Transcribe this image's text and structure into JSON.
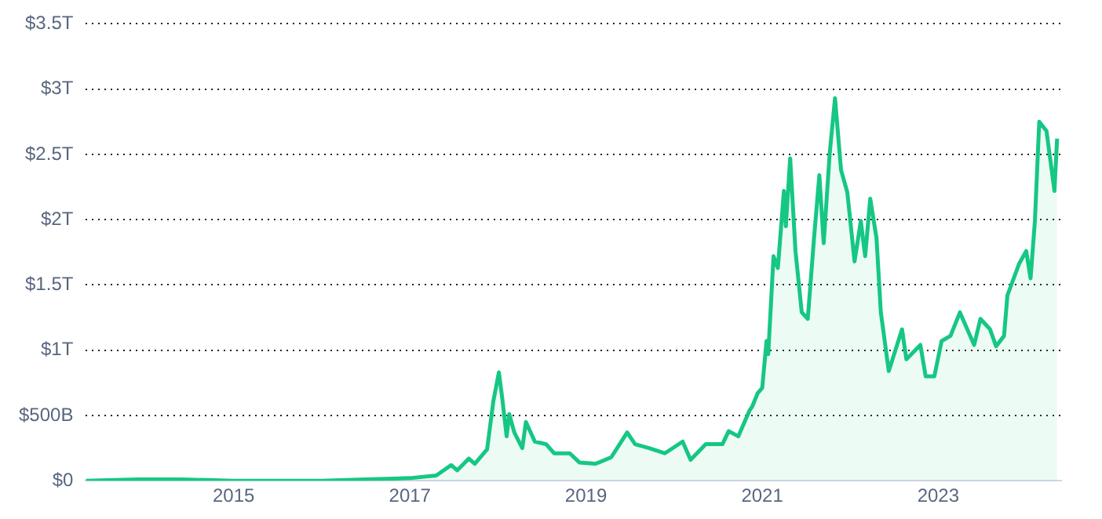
{
  "chart_data": {
    "type": "area",
    "x": [
      "2013-04-28",
      "2013-11-30",
      "2014-06-01",
      "2015-01-01",
      "2016-01-01",
      "2016-07-01",
      "2017-01-01",
      "2017-04-20",
      "2017-06-21",
      "2017-07-16",
      "2017-09-02",
      "2017-09-27",
      "2017-11-17",
      "2017-12-13",
      "2018-01-05",
      "2018-01-19",
      "2018-02-06",
      "2018-02-17",
      "2018-03-10",
      "2018-04-12",
      "2018-04-27",
      "2018-06-03",
      "2018-07-20",
      "2018-08-22",
      "2018-10-26",
      "2018-12-05",
      "2019-02-10",
      "2019-04-16",
      "2019-06-21",
      "2019-07-24",
      "2019-09-20",
      "2019-11-24",
      "2020-02-06",
      "2020-03-10",
      "2020-05-12",
      "2020-07-20",
      "2020-08-15",
      "2020-09-24",
      "2020-11-10",
      "2020-11-21",
      "2020-12-13",
      "2021-01-01",
      "2021-01-19",
      "2021-01-26",
      "2021-02-17",
      "2021-03-07",
      "2021-04-01",
      "2021-04-09",
      "2021-04-27",
      "2021-05-19",
      "2021-06-14",
      "2021-07-09",
      "2021-08-04",
      "2021-08-26",
      "2021-09-13",
      "2021-10-08",
      "2021-10-30",
      "2021-11-24",
      "2021-12-20",
      "2022-01-19",
      "2022-02-14",
      "2022-03-04",
      "2022-03-25",
      "2022-04-20",
      "2022-05-08",
      "2022-06-10",
      "2022-08-04",
      "2022-08-22",
      "2022-10-19",
      "2022-11-10",
      "2022-12-16",
      "2023-01-15",
      "2023-02-21",
      "2023-04-01",
      "2023-05-30",
      "2023-06-25",
      "2023-08-04",
      "2023-08-29",
      "2023-10-01",
      "2023-10-15",
      "2023-12-02",
      "2024-01-01",
      "2024-01-19",
      "2024-02-06",
      "2024-02-24",
      "2024-03-25",
      "2024-04-27",
      "2024-05-08"
    ],
    "values": [
      0,
      10000000000.0,
      10000000000.0,
      0,
      0,
      10000000000.0,
      20000000000.0,
      40000000000.0,
      120000000000.0,
      80000000000.0,
      170000000000.0,
      130000000000.0,
      240000000000.0,
      610000000000.0,
      830000000000.0,
      630000000000.0,
      340000000000.0,
      510000000000.0,
      370000000000.0,
      250000000000.0,
      450000000000.0,
      300000000000.0,
      280000000000.0,
      210000000000.0,
      210000000000.0,
      140000000000.0,
      130000000000.0,
      180000000000.0,
      370000000000.0,
      280000000000.0,
      250000000000.0,
      210000000000.0,
      300000000000.0,
      160000000000.0,
      280000000000.0,
      280000000000.0,
      380000000000.0,
      340000000000.0,
      540000000000.0,
      570000000000.0,
      670000000000.0,
      710000000000.0,
      1070000000000.0,
      970000000000.0,
      1720000000000.0,
      1630000000000.0,
      2220000000000.0,
      1950000000000.0,
      2470000000000.0,
      1760000000000.0,
      1290000000000.0,
      1240000000000.0,
      1860000000000.0,
      2340000000000.0,
      1820000000000.0,
      2510000000000.0,
      2930000000000.0,
      2380000000000.0,
      2210000000000.0,
      1680000000000.0,
      1990000000000.0,
      1720000000000.0,
      2160000000000.0,
      1860000000000.0,
      1290000000000.0,
      840000000000.0,
      1160000000000.0,
      930000000000.0,
      1040000000000.0,
      800000000000.0,
      800000000000.0,
      1070000000000.0,
      1110000000000.0,
      1290000000000.0,
      1040000000000.0,
      1240000000000.0,
      1160000000000.0,
      1030000000000.0,
      1110000000000.0,
      1420000000000.0,
      1660000000000.0,
      1760000000000.0,
      1550000000000.0,
      1990000000000.0,
      2750000000000.0,
      2680000000000.0,
      2220000000000.0,
      2620000000000.0
    ],
    "color": "#16c784",
    "xlim": [
      "2013-04-28",
      "2024-05-25"
    ],
    "xticks": [
      {
        "value": "2015",
        "label": "2015"
      },
      {
        "value": "2017",
        "label": "2017"
      },
      {
        "value": "2019",
        "label": "2019"
      },
      {
        "value": "2021",
        "label": "2021"
      },
      {
        "value": "2023",
        "label": "2023"
      }
    ],
    "ylim": [
      0,
      3500000000000.0
    ],
    "yticks": [
      {
        "value": 0,
        "label": "$0"
      },
      {
        "value": 500000000000.0,
        "label": "$500B"
      },
      {
        "value": 1000000000000.0,
        "label": "$1T"
      },
      {
        "value": 1500000000000.0,
        "label": "$1.5T"
      },
      {
        "value": 2000000000000.0,
        "label": "$2T"
      },
      {
        "value": 2500000000000.0,
        "label": "$2.5T"
      },
      {
        "value": 3000000000000.0,
        "label": "$3T"
      },
      {
        "value": 3500000000000.0,
        "label": "$3.5T"
      }
    ],
    "grid": "y",
    "legend": false,
    "marker": "none"
  }
}
